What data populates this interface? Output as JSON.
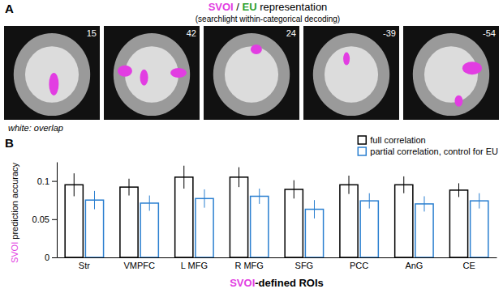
{
  "panel_labels": [
    "A",
    "B"
  ],
  "panel_a": {
    "title_parts": [
      {
        "text": "SVOI",
        "color": "#e23de2"
      },
      {
        "text": " / "
      },
      {
        "text": "EU",
        "color": "#2ca02c"
      },
      {
        "text": " representation"
      }
    ],
    "subtitle": "(searchlight within-categorical decoding)",
    "slices": [
      15,
      42,
      24,
      -39,
      -54
    ],
    "caption": "white: overlap"
  },
  "chart_data": {
    "type": "bar",
    "categories": [
      "Str",
      "VMPFC",
      "L MFG",
      "R MFG",
      "SFG",
      "PCC",
      "AnG",
      "CE"
    ],
    "series": [
      {
        "name": "full correlation",
        "color": "#000000",
        "values": [
          0.095,
          0.092,
          0.105,
          0.105,
          0.089,
          0.095,
          0.095,
          0.088
        ],
        "errors": [
          0.015,
          0.011,
          0.015,
          0.013,
          0.012,
          0.012,
          0.011,
          0.009
        ]
      },
      {
        "name": "partial correlation, control for EU",
        "color": "#2a7fd0",
        "values": [
          0.075,
          0.071,
          0.077,
          0.08,
          0.063,
          0.074,
          0.07,
          0.074
        ],
        "errors": [
          0.012,
          0.01,
          0.012,
          0.01,
          0.012,
          0.01,
          0.01,
          0.01
        ]
      }
    ],
    "ylabel_parts": [
      {
        "text": "SVOI",
        "color": "#e23de2"
      },
      {
        "text": " prediction accuracy"
      }
    ],
    "xlabel_parts": [
      {
        "text": "SVOI",
        "color": "#e23de2"
      },
      {
        "text": "-defined ROIs"
      }
    ],
    "ylim": [
      0,
      0.125
    ],
    "yticks": [
      0,
      0.05,
      0.1
    ],
    "legend": "upper right"
  }
}
